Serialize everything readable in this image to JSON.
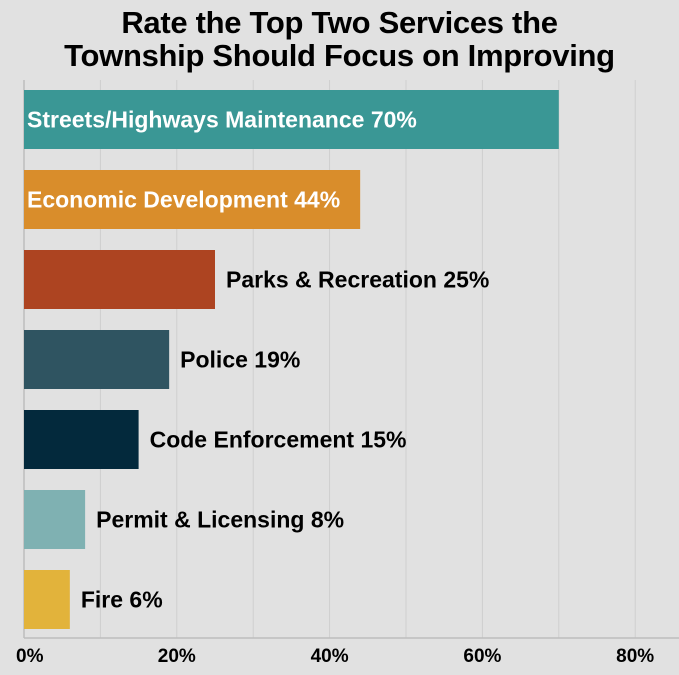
{
  "chart_data": {
    "type": "bar",
    "orientation": "horizontal",
    "title": "Rate the Top Two Services the Township Should Focus on Improving",
    "title_lines": [
      "Rate the Top Two Services the",
      "Township Should Focus on Improving"
    ],
    "categories": [
      "Streets/Highways Maintenance",
      "Economic Development",
      "Parks & Recreation",
      "Police",
      "Code Enforcement",
      "Permit & Licensing",
      "Fire"
    ],
    "values": [
      70,
      44,
      25,
      19,
      15,
      8,
      6
    ],
    "data_labels": [
      "Streets/Highways Maintenance 70%",
      "Economic Development 44%",
      "Parks & Recreation 25%",
      "Police 19%",
      "Code Enforcement 15%",
      "Permit & Licensing 8%",
      "Fire 6%"
    ],
    "label_inside": [
      true,
      true,
      false,
      false,
      false,
      false,
      false
    ],
    "colors": [
      "#3a9795",
      "#d98d2b",
      "#ad4421",
      "#2f5461",
      "#03293c",
      "#7fb1b2",
      "#e2b33b"
    ],
    "xlabel": "",
    "ylabel": "",
    "xlim": [
      0,
      85
    ],
    "x_ticks": [
      0,
      20,
      40,
      60,
      80
    ],
    "x_tick_labels": [
      "0%",
      "20%",
      "40%",
      "60%",
      "80%"
    ],
    "grid": true,
    "grid_step": 10,
    "legend": "none"
  }
}
